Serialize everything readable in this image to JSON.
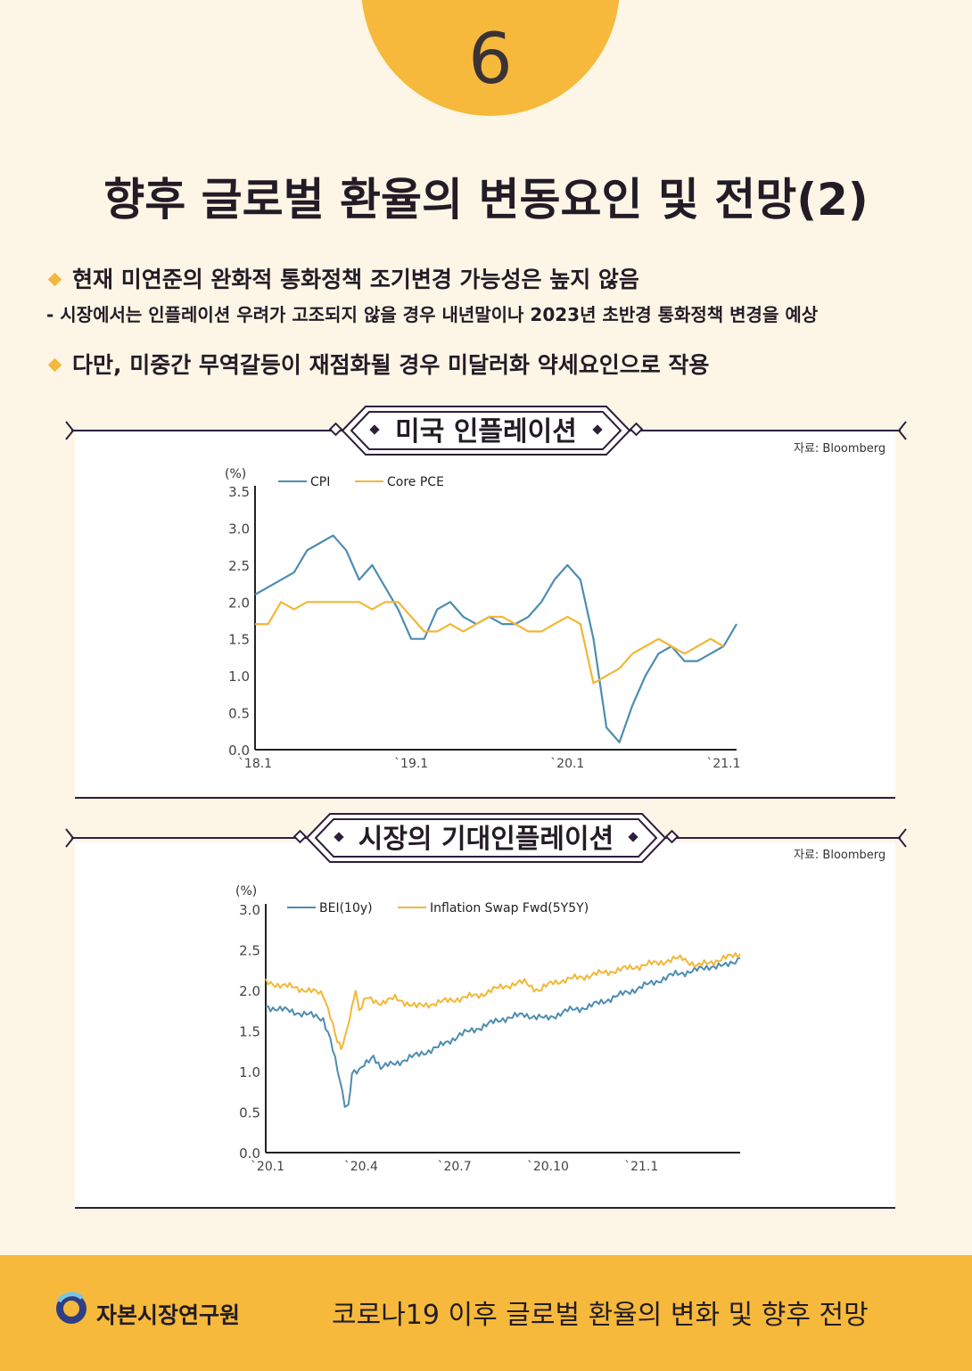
{
  "header": {
    "page_number": "6",
    "title": "향후 글로벌 환율의 변동요인 및 전망(2)"
  },
  "bullets": [
    "현재 미연준의 완화적 통화정책 조기변경 가능성은 높지 않음",
    "다만, 미중간 무역갈등이 재점화될 경우 미달러화 약세요인으로 작용"
  ],
  "sub_bullet": "-  시장에서는 인플레이션 우려가 고조되지 않을 경우 내년말이나 2023년 초반경 통화정책 변경을 예상",
  "colors": {
    "accent": "#f6b93b",
    "series_blue": "#4d8db0",
    "series_yellow": "#f2b737",
    "frame": "#2e1f3d"
  },
  "chart_data": [
    {
      "type": "line",
      "title": "미국 인플레이션",
      "source": "자료: Bloomberg",
      "ylabel": "(%)",
      "ylim": [
        0,
        3.5
      ],
      "yticks": [
        "0.0",
        "0.5",
        "1.0",
        "1.5",
        "2.0",
        "2.5",
        "3.0",
        "3.5"
      ],
      "xticks": [
        "`18.1",
        "`19.1",
        "`20.1",
        "`21.1"
      ],
      "xtick_index": [
        0,
        12,
        24,
        36
      ],
      "series": [
        {
          "name": "CPI",
          "color": "#4d8db0",
          "values": [
            2.1,
            2.2,
            2.3,
            2.4,
            2.7,
            2.8,
            2.9,
            2.7,
            2.3,
            2.5,
            2.2,
            1.9,
            1.5,
            1.5,
            1.9,
            2.0,
            1.8,
            1.7,
            1.8,
            1.7,
            1.7,
            1.8,
            2.0,
            2.3,
            2.5,
            2.3,
            1.5,
            0.3,
            0.1,
            0.6,
            1.0,
            1.3,
            1.4,
            1.2,
            1.2,
            1.3,
            1.4,
            1.7
          ]
        },
        {
          "name": "Core PCE",
          "color": "#f2b737",
          "values": [
            1.7,
            1.7,
            2.0,
            1.9,
            2.0,
            2.0,
            2.0,
            2.0,
            2.0,
            1.9,
            2.0,
            2.0,
            1.8,
            1.6,
            1.6,
            1.7,
            1.6,
            1.7,
            1.8,
            1.8,
            1.7,
            1.6,
            1.6,
            1.7,
            1.8,
            1.7,
            0.9,
            1.0,
            1.1,
            1.3,
            1.4,
            1.5,
            1.4,
            1.3,
            1.4,
            1.5,
            1.4
          ]
        }
      ]
    },
    {
      "type": "line",
      "title": "시장의 기대인플레이션",
      "source": "자료: Bloomberg",
      "ylabel": "(%)",
      "ylim": [
        0,
        3.0
      ],
      "yticks": [
        "0.0",
        "0.5",
        "1.0",
        "1.5",
        "2.0",
        "2.5",
        "3.0"
      ],
      "xticks": [
        "`20.1",
        "`20.4",
        "`20.7",
        "`20.10",
        "`21.1"
      ],
      "xtick_week": [
        0,
        13,
        26,
        39,
        52
      ],
      "series": [
        {
          "name": "BEI(10y)",
          "color": "#4d8db0",
          "points": [
            [
              0,
              1.8
            ],
            [
              3,
              1.75
            ],
            [
              6,
              1.7
            ],
            [
              8,
              1.65
            ],
            [
              9,
              1.4
            ],
            [
              10,
              1.0
            ],
            [
              11,
              0.6
            ],
            [
              11.5,
              0.55
            ],
            [
              12,
              1.0
            ],
            [
              13,
              1.0
            ],
            [
              14,
              1.1
            ],
            [
              15,
              1.2
            ],
            [
              16,
              1.05
            ],
            [
              18,
              1.1
            ],
            [
              21,
              1.2
            ],
            [
              24,
              1.3
            ],
            [
              27,
              1.45
            ],
            [
              30,
              1.55
            ],
            [
              33,
              1.65
            ],
            [
              36,
              1.7
            ],
            [
              39,
              1.65
            ],
            [
              42,
              1.75
            ],
            [
              45,
              1.8
            ],
            [
              48,
              1.9
            ],
            [
              51,
              2.0
            ],
            [
              54,
              2.1
            ],
            [
              57,
              2.2
            ],
            [
              60,
              2.25
            ],
            [
              62,
              2.3
            ],
            [
              64,
              2.3
            ],
            [
              66,
              2.4
            ]
          ]
        },
        {
          "name": "Inflation Swap Fwd(5Y5Y)",
          "color": "#f2b737",
          "points": [
            [
              0,
              2.1
            ],
            [
              3,
              2.05
            ],
            [
              6,
              2.0
            ],
            [
              8,
              1.95
            ],
            [
              9,
              1.7
            ],
            [
              10,
              1.35
            ],
            [
              10.5,
              1.3
            ],
            [
              11,
              1.4
            ],
            [
              12,
              1.8
            ],
            [
              12.5,
              2.0
            ],
            [
              13,
              1.75
            ],
            [
              14,
              1.9
            ],
            [
              16,
              1.85
            ],
            [
              18,
              1.9
            ],
            [
              21,
              1.8
            ],
            [
              24,
              1.85
            ],
            [
              27,
              1.9
            ],
            [
              30,
              1.95
            ],
            [
              33,
              2.05
            ],
            [
              36,
              2.1
            ],
            [
              38,
              2.0
            ],
            [
              40,
              2.1
            ],
            [
              43,
              2.15
            ],
            [
              46,
              2.2
            ],
            [
              49,
              2.25
            ],
            [
              52,
              2.3
            ],
            [
              55,
              2.35
            ],
            [
              58,
              2.4
            ],
            [
              60,
              2.3
            ],
            [
              62,
              2.35
            ],
            [
              64,
              2.4
            ],
            [
              66,
              2.45
            ]
          ]
        }
      ]
    }
  ],
  "footer": {
    "org": "자본시장연구원",
    "title": "코로나19 이후 글로벌 환율의 변화 및 향후 전망"
  }
}
